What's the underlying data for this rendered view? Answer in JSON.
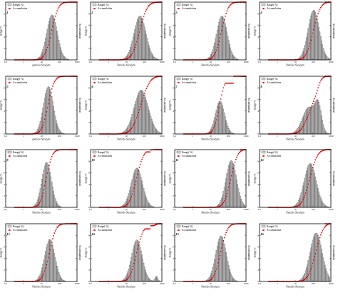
{
  "chart_data": [
    {
      "panel": "1",
      "type": "bar",
      "xlabel": "particle Size/μm",
      "mode": 40,
      "width": 0.3,
      "peak": 7.8,
      "tail": 0.0,
      "acc_tail_cut": 0,
      "secondary": null
    },
    {
      "panel": "2",
      "type": "bar",
      "xlabel": "Particle Size/μm",
      "mode": 60,
      "width": 0.34,
      "peak": 7.6,
      "tail": 0.0,
      "acc_tail_cut": 0,
      "secondary": null
    },
    {
      "panel": "3",
      "type": "bar",
      "xlabel": "Particle Size/μm",
      "mode": 45,
      "width": 0.3,
      "peak": 7.6,
      "tail": 0.0,
      "acc_tail_cut": 0,
      "secondary": null
    },
    {
      "panel": "4",
      "type": "bar",
      "xlabel": "Particle Size/μm",
      "mode": 110,
      "width": 0.32,
      "peak": 8.6,
      "tail": 0.0,
      "acc_tail_cut": 0,
      "secondary": null
    },
    {
      "panel": "5",
      "type": "bar",
      "xlabel": "particle Size/μm",
      "mode": 25,
      "width": 0.28,
      "peak": 8.2,
      "tail": 0.0,
      "acc_tail_cut": 0,
      "secondary": null
    },
    {
      "panel": "6",
      "type": "bar",
      "xlabel": "Particle Size/μm",
      "mode": 70,
      "width": 0.4,
      "peak": 7.6,
      "tail": 0.0,
      "acc_tail_cut": 0,
      "secondary": null
    },
    {
      "panel": "7",
      "type": "bar",
      "xlabel": "Particle Size/μm",
      "mode": 35,
      "width": 0.26,
      "peak": 5.7,
      "tail": 0.0,
      "acc_tail_cut": 88,
      "secondary": null
    },
    {
      "panel": "8",
      "type": "bar",
      "xlabel": "Particle Size/μm",
      "mode": 60,
      "width": 0.36,
      "peak": 4.6,
      "tail": 0.0,
      "acc_tail_cut": 0,
      "secondary": {
        "mode": 200,
        "width": 0.18,
        "peak": 4.2
      }
    },
    {
      "panel": "9",
      "type": "bar",
      "xlabel": "Particle Size/μm",
      "mode": 20,
      "width": 0.27,
      "peak": 7.8,
      "tail": 0.0,
      "acc_tail_cut": 0,
      "secondary": null
    },
    {
      "panel": "10",
      "type": "bar",
      "xlabel": "Particle Size/μm",
      "mode": 40,
      "width": 0.32,
      "peak": 6.8,
      "tail": 0.0,
      "acc_tail_cut": 96,
      "secondary": null
    },
    {
      "panel": "11",
      "type": "bar",
      "xlabel": "Particle Size/μm",
      "mode": 150,
      "width": 0.3,
      "peak": 8.1,
      "tail": 1.4,
      "acc_tail_cut": 0,
      "secondary": null
    },
    {
      "panel": "12",
      "type": "bar",
      "xlabel": "Particle Size/μm",
      "mode": 70,
      "width": 0.34,
      "peak": 7.6,
      "tail": 0.0,
      "acc_tail_cut": 0,
      "secondary": null
    },
    {
      "panel": "13",
      "type": "bar",
      "xlabel": "Particle Size/μm",
      "mode": 30,
      "width": 0.29,
      "peak": 7.3,
      "tail": 0.0,
      "acc_tail_cut": 0,
      "secondary": null
    },
    {
      "panel": "14",
      "type": "bar",
      "xlabel": "Particle Size/μm",
      "mode": 40,
      "width": 0.3,
      "peak": 7.2,
      "tail": 0.0,
      "acc_tail_cut": 91,
      "secondary": {
        "mode": 500,
        "width": 0.08,
        "peak": 0.9
      }
    },
    {
      "panel": "15",
      "type": "bar",
      "xlabel": "Particle Size/μm",
      "mode": 40,
      "width": 0.3,
      "peak": 7.9,
      "tail": 0.0,
      "acc_tail_cut": 0,
      "secondary": null
    },
    {
      "panel": "16",
      "type": "bar",
      "xlabel": "Particle Size/μm",
      "mode": 150,
      "width": 0.34,
      "peak": 8.4,
      "tail": 0.0,
      "acc_tail_cut": 0,
      "secondary": null
    }
  ],
  "common": {
    "legend_range": "Range(  %)",
    "legend_acc": "Accumulation",
    "ylabel_left": "Range/%",
    "ylabel_right": "Accumulation",
    "x_ticks": [
      "0.1",
      "1",
      "10",
      "100",
      "1000"
    ],
    "y_left_ticks": [
      "0",
      "2",
      "4",
      "6",
      "8"
    ],
    "y_right_ticks": [
      "0",
      "20",
      "40",
      "60",
      "80",
      "100"
    ],
    "colors": {
      "bar_fill": "#d9d9d9",
      "bar_edge": "#444444",
      "accumulation": "#e00000"
    }
  }
}
